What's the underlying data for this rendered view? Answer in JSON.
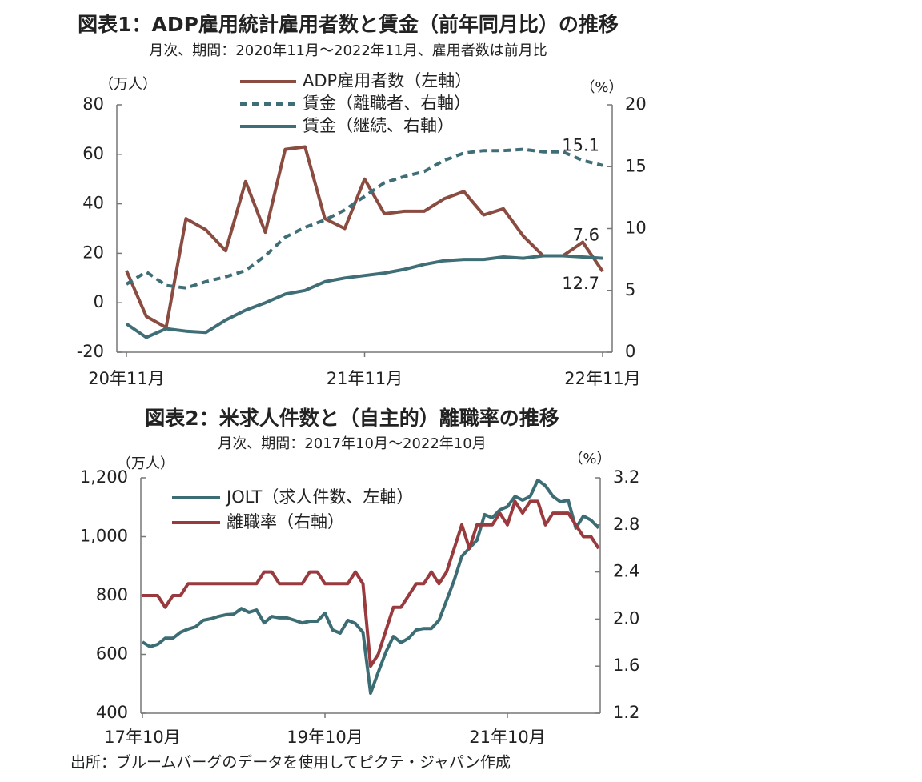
{
  "chart_data": [
    {
      "type": "line",
      "title": "図表1：ADP雇用統計雇用者数と賃金（前年同月比）の推移",
      "subtitle": "月次、期間：2020年11月～2022年11月、雇用者数は前月比",
      "ylabel": "（万人）",
      "y2label": "（%）",
      "categories": [
        "20年11月",
        null,
        null,
        null,
        null,
        null,
        null,
        null,
        null,
        null,
        null,
        null,
        "21年11月",
        null,
        null,
        null,
        null,
        null,
        null,
        null,
        null,
        null,
        null,
        null,
        "22年11月"
      ],
      "ylim": [
        -20,
        80
      ],
      "yticks": [
        -20,
        0,
        20,
        40,
        60,
        80
      ],
      "y2lim": [
        0,
        20
      ],
      "y2ticks": [
        0,
        5,
        10,
        15,
        20
      ],
      "legend": "top",
      "end_labels": true,
      "series": [
        {
          "name": "ADP雇用者数（左軸）",
          "color": "#8a4b40",
          "values": [
            13,
            -5.5,
            -10,
            34,
            29.5,
            21,
            49,
            28.5,
            62,
            63,
            34,
            30,
            50,
            36,
            37,
            37,
            42,
            45,
            35.5,
            38,
            27,
            19,
            19,
            24.5,
            12.7
          ]
        },
        {
          "name": "賃金（離職者、右軸）",
          "color": "#3f6e76",
          "dashed": true,
          "axis": "y2",
          "values": [
            5.5,
            6.5,
            5.4,
            5.2,
            5.7,
            6.1,
            6.6,
            7.8,
            9.3,
            10.1,
            10.7,
            11.5,
            12.6,
            13.7,
            14.2,
            14.6,
            15.5,
            16.1,
            16.3,
            16.3,
            16.4,
            16.2,
            16.2,
            15.5,
            15.1
          ]
        },
        {
          "name": "賃金（継続、右軸）",
          "color": "#3f6e76",
          "axis": "y2",
          "values": [
            2.3,
            1.2,
            1.9,
            1.7,
            1.6,
            2.6,
            3.4,
            4.0,
            4.7,
            5.0,
            5.7,
            6.0,
            6.2,
            6.4,
            6.7,
            7.1,
            7.4,
            7.5,
            7.5,
            7.7,
            7.6,
            7.8,
            7.8,
            7.7,
            7.6
          ]
        }
      ]
    },
    {
      "type": "line",
      "title": "図表2：米求人件数と（自主的）離職率の推移",
      "subtitle": "月次、期間：2017年10月～2022年10月",
      "ylabel": "（万人）",
      "y2label": "（%）",
      "categories": [
        "17年10月",
        null,
        null,
        null,
        null,
        null,
        null,
        null,
        null,
        null,
        null,
        null,
        null,
        null,
        null,
        null,
        null,
        null,
        null,
        null,
        null,
        null,
        null,
        null,
        "19年10月",
        null,
        null,
        null,
        null,
        null,
        null,
        null,
        null,
        null,
        null,
        null,
        null,
        null,
        null,
        null,
        null,
        null,
        null,
        null,
        null,
        null,
        null,
        null,
        "21年10月",
        null,
        null,
        null,
        null,
        null,
        null,
        null,
        null,
        null,
        null,
        null,
        null
      ],
      "ylim": [
        400,
        1200
      ],
      "yticks": [
        400,
        600,
        800,
        {
          "value": 1000,
          "label": "1,000"
        },
        {
          "value": 1200,
          "label": "1,200"
        }
      ],
      "y2lim": [
        1.2,
        3.2
      ],
      "y2ticks": [
        1.2,
        1.6,
        {
          "value": 2.0,
          "label": "2.0"
        },
        2.4,
        2.8,
        3.2
      ],
      "legend": "upper left",
      "series": [
        {
          "name": "JOLT（求人件数、左軸）",
          "color": "#3d6d74",
          "values": [
            642,
            626,
            634,
            655,
            655,
            675,
            686,
            694,
            716,
            721,
            729,
            735,
            737,
            756,
            743,
            751,
            707,
            729,
            724,
            724,
            716,
            707,
            713,
            713,
            740,
            683,
            672,
            716,
            705,
            675,
            468,
            539,
            607,
            661,
            640,
            655,
            683,
            688,
            688,
            716,
            784,
            852,
            933,
            961,
            988,
            1075,
            1064,
            1091,
            1102,
            1137,
            1124,
            1137,
            1192,
            1173,
            1137,
            1118,
            1124,
            1029,
            1070,
            1056,
            1029
          ]
        },
        {
          "name": "離職率（右軸）",
          "color": "#993a3e",
          "axis": "y2",
          "values": [
            2.2,
            2.2,
            2.2,
            2.1,
            2.2,
            2.2,
            2.3,
            2.3,
            2.3,
            2.3,
            2.3,
            2.3,
            2.3,
            2.3,
            2.3,
            2.3,
            2.4,
            2.4,
            2.3,
            2.3,
            2.3,
            2.3,
            2.4,
            2.4,
            2.3,
            2.3,
            2.3,
            2.3,
            2.4,
            2.3,
            1.6,
            1.7,
            1.9,
            2.1,
            2.1,
            2.2,
            2.3,
            2.3,
            2.4,
            2.3,
            2.4,
            2.6,
            2.8,
            2.6,
            2.8,
            2.8,
            2.8,
            2.9,
            2.8,
            3.0,
            2.9,
            3.0,
            3.0,
            2.8,
            2.9,
            2.9,
            2.9,
            2.8,
            2.7,
            2.7,
            2.6
          ]
        }
      ]
    }
  ],
  "source": "出所：ブルームバーグのデータを使用してピクテ・ジャパン作成"
}
